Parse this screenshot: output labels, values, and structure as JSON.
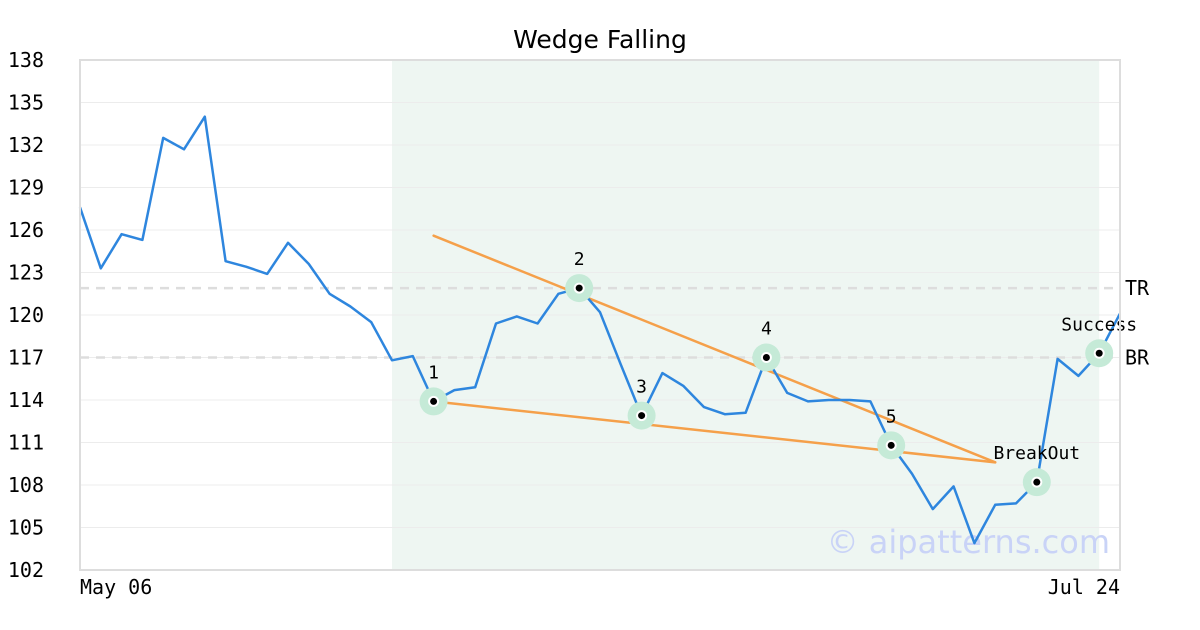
{
  "chart_data": {
    "type": "line",
    "title": "Wedge Falling",
    "xlabel": "",
    "ylabel": "",
    "ylim": [
      102,
      138
    ],
    "yticks": [
      102,
      105,
      108,
      111,
      114,
      117,
      120,
      123,
      126,
      129,
      132,
      135,
      138
    ],
    "x_tick_labels": [
      "May 06",
      "Jul 24"
    ],
    "grid": "horizontal",
    "colors": {
      "price": "#2e86de",
      "trendline": "#f5a04a",
      "highlight_band": "#eef6f2",
      "marker_halo": "#c5ead7",
      "reference": "#dddddd",
      "axes": "#dddddd"
    },
    "series": [
      {
        "values": [
          127.6,
          123.3,
          125.7,
          125.3,
          132.5,
          131.7,
          134,
          123.8,
          123.4,
          122.9,
          125.1,
          123.6,
          121.5,
          120.6,
          119.5,
          116.8,
          117.1,
          113.9,
          114.7,
          114.9,
          119.4,
          119.9,
          119.4,
          121.5,
          121.9,
          120.2,
          116.5,
          112.9,
          115.9,
          115,
          113.5,
          113,
          113.1,
          117,
          114.5,
          113.9,
          114,
          114,
          113.9,
          110.8,
          108.8,
          106.3,
          107.9,
          103.9,
          106.6,
          106.7,
          108.2,
          116.9,
          115.7,
          117.3,
          120.1
        ]
      }
    ],
    "highlight_range": [
      15,
      49
    ],
    "trendlines": [
      {
        "from": [
          17,
          125.6
        ],
        "to": [
          44,
          109.6
        ]
      },
      {
        "from": [
          17,
          113.9
        ],
        "to": [
          44,
          109.6
        ]
      }
    ],
    "reference_lines": [
      {
        "label": "TR",
        "value": 121.9
      },
      {
        "label": "BR",
        "value": 117
      }
    ],
    "annotations": [
      {
        "label": "1",
        "x": 17,
        "y": 113.9
      },
      {
        "label": "2",
        "x": 24,
        "y": 121.9
      },
      {
        "label": "3",
        "x": 27,
        "y": 112.9
      },
      {
        "label": "4",
        "x": 33,
        "y": 117.0
      },
      {
        "label": "5",
        "x": 39,
        "y": 110.8
      },
      {
        "label": "BreakOut",
        "x": 46,
        "y": 108.2
      },
      {
        "label": "Success",
        "x": 49,
        "y": 117.3
      }
    ],
    "watermark": "© aipatterns.com"
  }
}
